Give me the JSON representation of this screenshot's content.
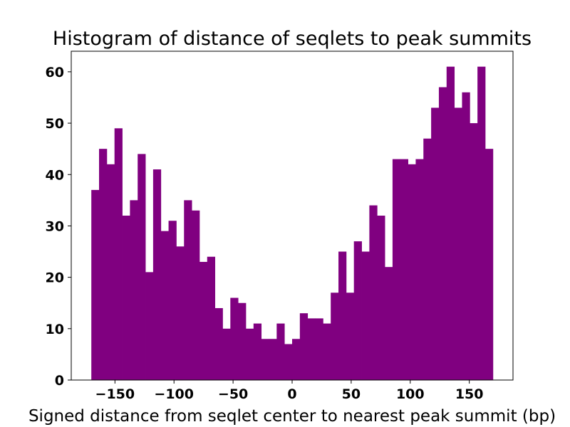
{
  "chart_data": {
    "type": "bar",
    "title": "Histogram of distance of seqlets to peak summits",
    "xlabel": "Signed distance from seqlet center to nearest peak summit (bp)",
    "ylabel": "",
    "xlim": [
      -187,
      187
    ],
    "ylim": [
      0,
      64
    ],
    "bar_color": "#800080",
    "grid": false,
    "legend": false,
    "bin_range": [
      -170,
      170
    ],
    "x_ticks": [
      -150,
      -100,
      -50,
      0,
      50,
      100,
      150
    ],
    "x_tick_labels": [
      "−150",
      "−100",
      "−50",
      "0",
      "50",
      "100",
      "150"
    ],
    "y_ticks": [
      0,
      10,
      20,
      30,
      40,
      50,
      60
    ],
    "y_tick_labels": [
      "0",
      "10",
      "20",
      "30",
      "40",
      "50",
      "60"
    ],
    "values": [
      37,
      45,
      42,
      49,
      32,
      35,
      44,
      21,
      41,
      29,
      31,
      26,
      35,
      33,
      23,
      24,
      14,
      10,
      16,
      15,
      10,
      11,
      8,
      8,
      11,
      7,
      8,
      13,
      12,
      12,
      11,
      17,
      25,
      17,
      27,
      25,
      34,
      32,
      22,
      43,
      43,
      42,
      43,
      47,
      53,
      57,
      61,
      53,
      56,
      50,
      61,
      45
    ]
  }
}
